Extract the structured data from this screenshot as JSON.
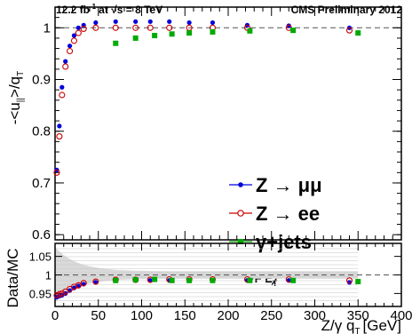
{
  "header": {
    "lumi": "12.2 fb",
    "lumi_sup": "-1",
    "energy": "at √s = 8 TeV",
    "experiment": "CMS Preliminary 2012"
  },
  "annotation": {
    "pf_label": "PF E",
    "pf_sub": "T"
  },
  "chart_data": [
    {
      "type": "scatter",
      "ylabel": "-<u",
      "ylabel_sub1": "||",
      "ylabel_mid": ">/q",
      "ylabel_sub2": "T",
      "xlim": [
        0,
        400
      ],
      "ylim": [
        0.59,
        1.04
      ],
      "yticks": [
        "0.6",
        "0.7",
        "0.8",
        "0.9",
        "1"
      ],
      "reference_line": 1.0,
      "legend_position": "right",
      "series": [
        {
          "name": "Z → μμ",
          "color": "#0000dd",
          "marker": "dot",
          "x": [
            2,
            5,
            8,
            12,
            17,
            22,
            27,
            33,
            47,
            70,
            93,
            110,
            132,
            155,
            182,
            222,
            270,
            340
          ],
          "y": [
            0.725,
            0.81,
            0.885,
            0.935,
            0.965,
            0.985,
            1.0,
            1.005,
            1.01,
            1.012,
            1.012,
            1.012,
            1.012,
            1.01,
            1.01,
            1.005,
            1.004,
            1.0
          ]
        },
        {
          "name": "Z → ee",
          "color": "#cc0000",
          "marker": "open-circle",
          "x": [
            2,
            5,
            8,
            12,
            17,
            22,
            27,
            33,
            47,
            70,
            93,
            110,
            132,
            155,
            182,
            222,
            270,
            340
          ],
          "y": [
            0.72,
            0.79,
            0.87,
            0.925,
            0.955,
            0.975,
            0.99,
            0.998,
            1.0,
            1.0,
            1.0,
            1.0,
            1.0,
            1.0,
            1.0,
            1.0,
            1.0,
            0.995
          ]
        },
        {
          "name": "γ+jets",
          "color": "#00aa00",
          "marker": "square",
          "x": [
            70,
            93,
            115,
            135,
            155,
            182,
            225,
            275,
            350
          ],
          "y": [
            0.97,
            0.98,
            0.985,
            0.988,
            0.99,
            0.992,
            0.994,
            0.995,
            0.99
          ]
        }
      ]
    },
    {
      "type": "scatter",
      "ylabel": "Data/MC",
      "xlabel": "Z/γ q",
      "xlabel_sub": "T",
      "xlabel_unit": "[GeV]",
      "xlim": [
        0,
        400
      ],
      "ylim": [
        0.915,
        1.085
      ],
      "xticks": [
        "0",
        "50",
        "100",
        "150",
        "200",
        "250",
        "300",
        "350",
        "400"
      ],
      "yticks": [
        "0.95",
        "1",
        "1.05"
      ],
      "reference_line": 1.0,
      "series": [
        {
          "name": "Z → μμ",
          "color": "#0000dd",
          "marker": "dot",
          "x": [
            2,
            5,
            8,
            12,
            17,
            22,
            27,
            33,
            47,
            70,
            93,
            110,
            132,
            155,
            182,
            222,
            270,
            340
          ],
          "y": [
            0.94,
            0.943,
            0.945,
            0.95,
            0.958,
            0.965,
            0.97,
            0.975,
            0.98,
            0.985,
            0.985,
            0.985,
            0.985,
            0.985,
            0.985,
            0.985,
            0.985,
            0.98
          ]
        },
        {
          "name": "Z → ee",
          "color": "#cc0000",
          "marker": "open-circle",
          "x": [
            2,
            5,
            8,
            12,
            17,
            22,
            27,
            33,
            47,
            70,
            93,
            110,
            132,
            155,
            182,
            222,
            270,
            340
          ],
          "y": [
            0.945,
            0.948,
            0.95,
            0.955,
            0.962,
            0.968,
            0.972,
            0.978,
            0.982,
            0.987,
            0.987,
            0.987,
            0.988,
            0.988,
            0.988,
            0.988,
            0.988,
            0.985
          ]
        },
        {
          "name": "γ+jets",
          "color": "#00aa00",
          "marker": "square",
          "x": [
            70,
            93,
            115,
            135,
            155,
            182,
            225,
            275,
            350
          ],
          "y": [
            0.985,
            0.987,
            0.988,
            0.985,
            0.985,
            0.985,
            0.985,
            0.985,
            0.982
          ]
        }
      ]
    }
  ]
}
